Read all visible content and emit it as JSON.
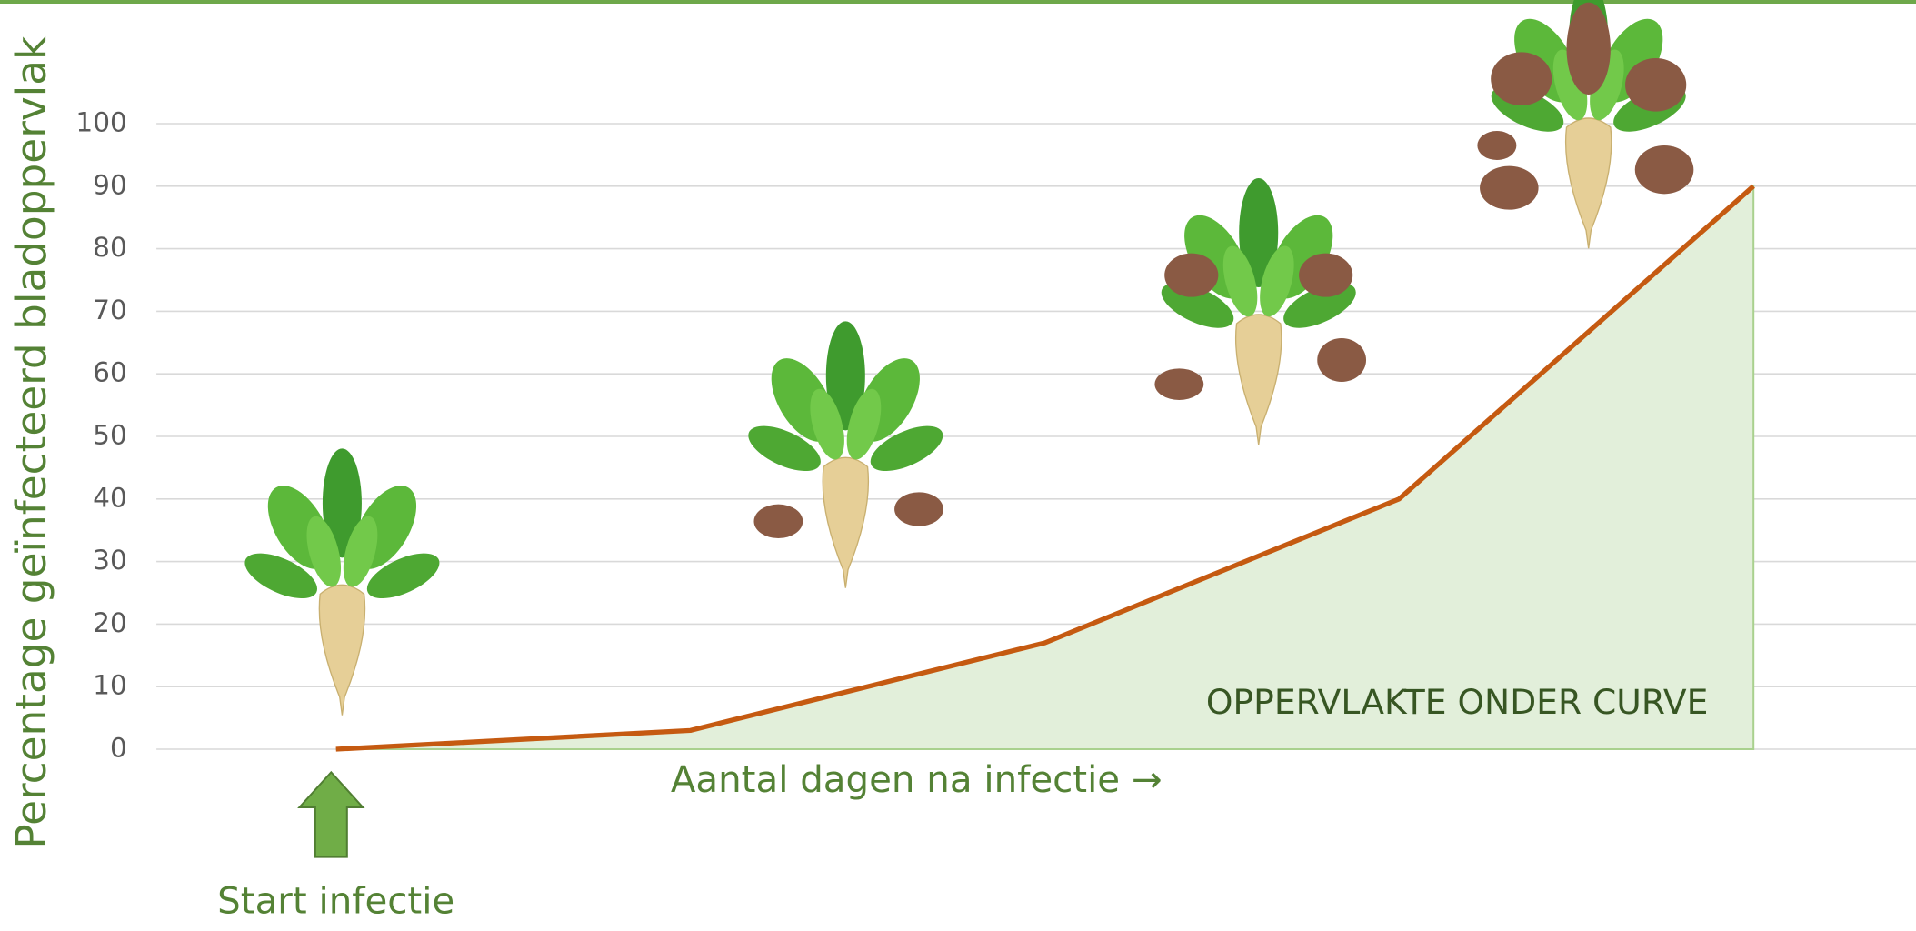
{
  "chart_data": {
    "type": "area",
    "y_label": "Percentage geïnfecteerd bladoppervlak",
    "x_label": "Aantal dagen na infectie →",
    "annotations": [
      "OPPERVLAKTE ONDER CURVE",
      "Start infectie"
    ],
    "categories": [
      null,
      null,
      null,
      null,
      null
    ],
    "values": [
      0,
      3,
      17,
      40,
      90
    ],
    "color": "#c55a11",
    "fill": "#e2efda",
    "ylim": [
      0,
      100
    ],
    "yticks": [
      0,
      10,
      20,
      30,
      40,
      50,
      60,
      70,
      80,
      90,
      100
    ],
    "grid": true
  }
}
